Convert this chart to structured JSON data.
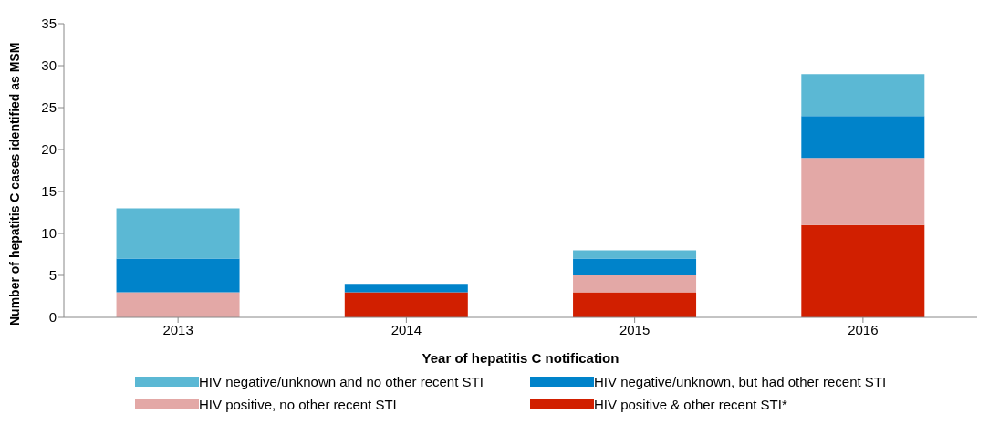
{
  "chart_data": {
    "type": "bar",
    "stacked": true,
    "xlabel": "Year  of hepatitis C notification",
    "ylabel": "Number of hepatitis C cases identified as MSM",
    "categories": [
      "2013",
      "2014",
      "2015",
      "2016"
    ],
    "series": [
      {
        "name": "HIV positive & other recent STI*",
        "color": "#d11f00",
        "values": [
          0,
          3,
          3,
          11
        ]
      },
      {
        "name": "HIV positive, no other recent STI",
        "color": "#e3a8a6",
        "values": [
          3,
          0,
          2,
          8
        ]
      },
      {
        "name": "HIV negative/unknown, but had other recent STI",
        "color": "#0083ca",
        "values": [
          4,
          1,
          2,
          5
        ]
      },
      {
        "name": "HIV negative/unknown and no other recent STI",
        "color": "#5bb8d4",
        "values": [
          6,
          0,
          1,
          5
        ]
      }
    ],
    "ylim": [
      0,
      35
    ],
    "yticks": [
      0,
      5,
      10,
      15,
      20,
      25,
      30,
      35
    ],
    "legend": "bottom"
  }
}
